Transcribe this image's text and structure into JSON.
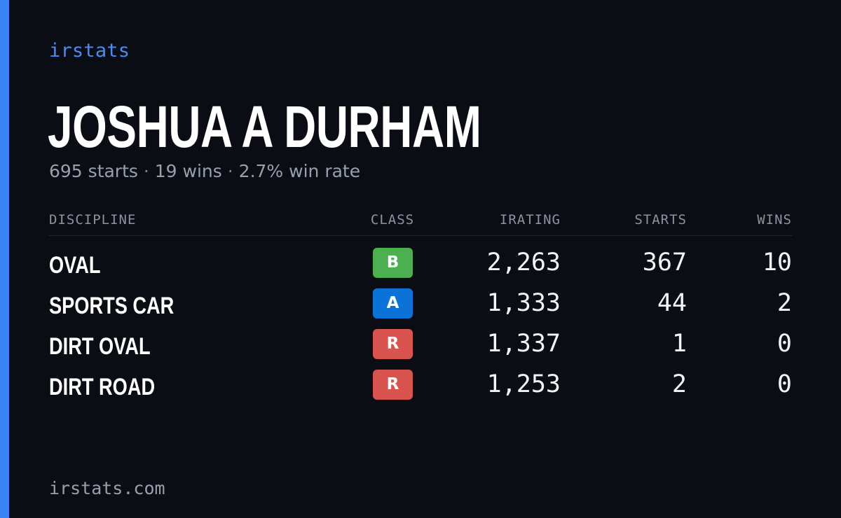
{
  "brand": {
    "name": "irstats",
    "accent_color": "#3b82f6"
  },
  "driver": {
    "name": "JOSHUA A DURHAM",
    "starts_text": "695 starts",
    "separator": "·",
    "wins_text": "19 wins",
    "win_rate_text": "2.7% win rate"
  },
  "table": {
    "headers": {
      "discipline": "DISCIPLINE",
      "class": "CLASS",
      "irating": "IRATING",
      "starts": "STARTS",
      "wins": "WINS"
    },
    "rows": [
      {
        "discipline": "OVAL",
        "class": "B",
        "class_color": "#4caf50",
        "irating": "2,263",
        "starts": "367",
        "wins": "10"
      },
      {
        "discipline": "SPORTS CAR",
        "class": "A",
        "class_color": "#0b72d8",
        "irating": "1,333",
        "starts": "44",
        "wins": "2"
      },
      {
        "discipline": "DIRT OVAL",
        "class": "R",
        "class_color": "#d9534f",
        "irating": "1,337",
        "starts": "1",
        "wins": "0"
      },
      {
        "discipline": "DIRT ROAD",
        "class": "R",
        "class_color": "#d9534f",
        "irating": "1,253",
        "starts": "2",
        "wins": "0"
      }
    ]
  },
  "footer": {
    "domain": "irstats.com"
  }
}
